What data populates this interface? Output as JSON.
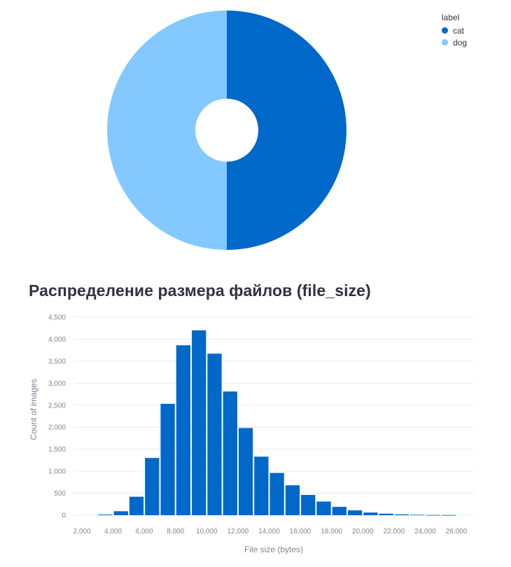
{
  "colors": {
    "cat": "#0068c9",
    "dog": "#83c9ff",
    "bar": "#0068c9",
    "grid": "#e6e9ef",
    "text": "#31333f",
    "tick": "#808495"
  },
  "chart_data": [
    {
      "type": "pie",
      "donut": true,
      "legend_title": "label",
      "legend_placement": "top-right",
      "categories": [
        "cat",
        "dog"
      ],
      "values": [
        50,
        50
      ]
    },
    {
      "type": "bar",
      "title": "Распределение размера файлов (file_size)",
      "xlabel": "File size (bytes)",
      "ylabel": "Count of images",
      "xlim": [
        2000,
        26000
      ],
      "ylim": [
        0,
        4500
      ],
      "grid": true,
      "x_ticks": [
        "2,000",
        "4,000",
        "6,000",
        "8,000",
        "10,000",
        "12,000",
        "14,000",
        "16,000",
        "18,000",
        "20,000",
        "22,000",
        "24,000",
        "26,000"
      ],
      "y_ticks": [
        "0",
        "500",
        "1,000",
        "1,500",
        "2,000",
        "2,500",
        "3,000",
        "3,500",
        "4,000",
        "4,500"
      ],
      "bin_width": 1000,
      "bin_starts": [
        3000,
        4000,
        5000,
        6000,
        7000,
        8000,
        9000,
        10000,
        11000,
        12000,
        13000,
        14000,
        15000,
        16000,
        17000,
        18000,
        19000,
        20000,
        21000,
        22000,
        23000,
        24000,
        25000
      ],
      "values": [
        15,
        90,
        420,
        1300,
        2530,
        3860,
        4200,
        3670,
        2810,
        1980,
        1330,
        960,
        680,
        460,
        310,
        190,
        110,
        60,
        35,
        20,
        10,
        5,
        3
      ]
    }
  ]
}
